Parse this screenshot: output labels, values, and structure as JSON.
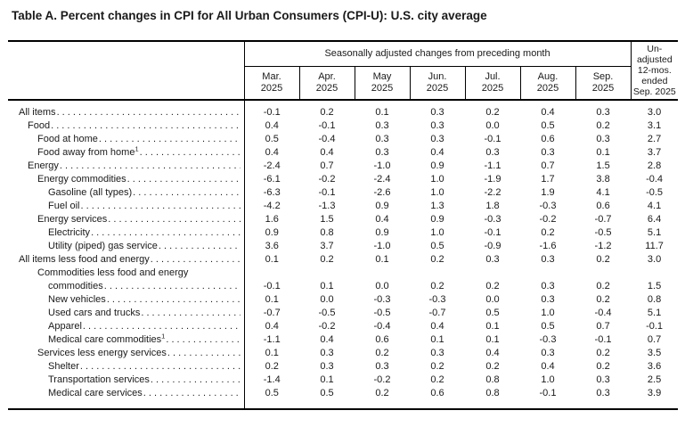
{
  "page": {
    "title": "Table A. Percent changes in CPI for All Urban Consumers (CPI-U): U.S. city average"
  },
  "colors": {
    "text": "#1a1a1a",
    "line": "#000000",
    "background": "#ffffff"
  },
  "table": {
    "group_header": "Seasonally adjusted changes from preceding month",
    "unadjusted_header": "Un-\nadjusted\n12-mos.\nended\nSep. 2025",
    "month_headers": [
      "Mar.\n2025",
      "Apr.\n2025",
      "May\n2025",
      "Jun.\n2025",
      "Jul.\n2025",
      "Aug.\n2025",
      "Sep.\n2025"
    ],
    "rows": [
      {
        "indent": 0,
        "label": "All items",
        "values": [
          "-0.1",
          "0.2",
          "0.1",
          "0.3",
          "0.2",
          "0.4",
          "0.3",
          "3.0"
        ]
      },
      {
        "indent": 1,
        "label": "Food",
        "values": [
          "0.4",
          "-0.1",
          "0.3",
          "0.3",
          "0.0",
          "0.5",
          "0.2",
          "3.1"
        ]
      },
      {
        "indent": 2,
        "label": "Food at home",
        "values": [
          "0.5",
          "-0.4",
          "0.3",
          "0.3",
          "-0.1",
          "0.6",
          "0.3",
          "2.7"
        ]
      },
      {
        "indent": 2,
        "label": "Food away from home",
        "footnote": "1",
        "values": [
          "0.4",
          "0.4",
          "0.3",
          "0.4",
          "0.3",
          "0.3",
          "0.1",
          "3.7"
        ]
      },
      {
        "indent": 1,
        "label": "Energy",
        "values": [
          "-2.4",
          "0.7",
          "-1.0",
          "0.9",
          "-1.1",
          "0.7",
          "1.5",
          "2.8"
        ]
      },
      {
        "indent": 2,
        "label": "Energy commodities",
        "values": [
          "-6.1",
          "-0.2",
          "-2.4",
          "1.0",
          "-1.9",
          "1.7",
          "3.8",
          "-0.4"
        ]
      },
      {
        "indent": 3,
        "label": "Gasoline (all types)",
        "values": [
          "-6.3",
          "-0.1",
          "-2.6",
          "1.0",
          "-2.2",
          "1.9",
          "4.1",
          "-0.5"
        ]
      },
      {
        "indent": 3,
        "label": "Fuel oil",
        "values": [
          "-4.2",
          "-1.3",
          "0.9",
          "1.3",
          "1.8",
          "-0.3",
          "0.6",
          "4.1"
        ]
      },
      {
        "indent": 2,
        "label": "Energy services",
        "values": [
          "1.6",
          "1.5",
          "0.4",
          "0.9",
          "-0.3",
          "-0.2",
          "-0.7",
          "6.4"
        ]
      },
      {
        "indent": 3,
        "label": "Electricity",
        "values": [
          "0.9",
          "0.8",
          "0.9",
          "1.0",
          "-0.1",
          "0.2",
          "-0.5",
          "5.1"
        ]
      },
      {
        "indent": 3,
        "label": "Utility (piped) gas service",
        "values": [
          "3.6",
          "3.7",
          "-1.0",
          "0.5",
          "-0.9",
          "-1.6",
          "-1.2",
          "11.7"
        ]
      },
      {
        "indent": 0,
        "label": "All items less food and energy",
        "values": [
          "0.1",
          "0.2",
          "0.1",
          "0.2",
          "0.3",
          "0.3",
          "0.2",
          "3.0"
        ]
      },
      {
        "indent": 2,
        "label_top": "Commodities less food and energy",
        "label": "commodities",
        "values": [
          "-0.1",
          "0.1",
          "0.0",
          "0.2",
          "0.2",
          "0.3",
          "0.2",
          "1.5"
        ]
      },
      {
        "indent": 3,
        "label": "New vehicles",
        "values": [
          "0.1",
          "0.0",
          "-0.3",
          "-0.3",
          "0.0",
          "0.3",
          "0.2",
          "0.8"
        ]
      },
      {
        "indent": 3,
        "label": "Used cars and trucks",
        "values": [
          "-0.7",
          "-0.5",
          "-0.5",
          "-0.7",
          "0.5",
          "1.0",
          "-0.4",
          "5.1"
        ]
      },
      {
        "indent": 3,
        "label": "Apparel",
        "values": [
          "0.4",
          "-0.2",
          "-0.4",
          "0.4",
          "0.1",
          "0.5",
          "0.7",
          "-0.1"
        ]
      },
      {
        "indent": 3,
        "label": "Medical care commodities",
        "footnote": "1",
        "values": [
          "-1.1",
          "0.4",
          "0.6",
          "0.1",
          "0.1",
          "-0.3",
          "-0.1",
          "0.7"
        ]
      },
      {
        "indent": 2,
        "label": "Services less energy services",
        "values": [
          "0.1",
          "0.3",
          "0.2",
          "0.3",
          "0.4",
          "0.3",
          "0.2",
          "3.5"
        ]
      },
      {
        "indent": 3,
        "label": "Shelter",
        "values": [
          "0.2",
          "0.3",
          "0.3",
          "0.2",
          "0.2",
          "0.4",
          "0.2",
          "3.6"
        ]
      },
      {
        "indent": 3,
        "label": "Transportation services",
        "values": [
          "-1.4",
          "0.1",
          "-0.2",
          "0.2",
          "0.8",
          "1.0",
          "0.3",
          "2.5"
        ]
      },
      {
        "indent": 3,
        "label": "Medical care services",
        "values": [
          "0.5",
          "0.5",
          "0.2",
          "0.6",
          "0.8",
          "-0.1",
          "0.3",
          "3.9"
        ]
      }
    ]
  }
}
